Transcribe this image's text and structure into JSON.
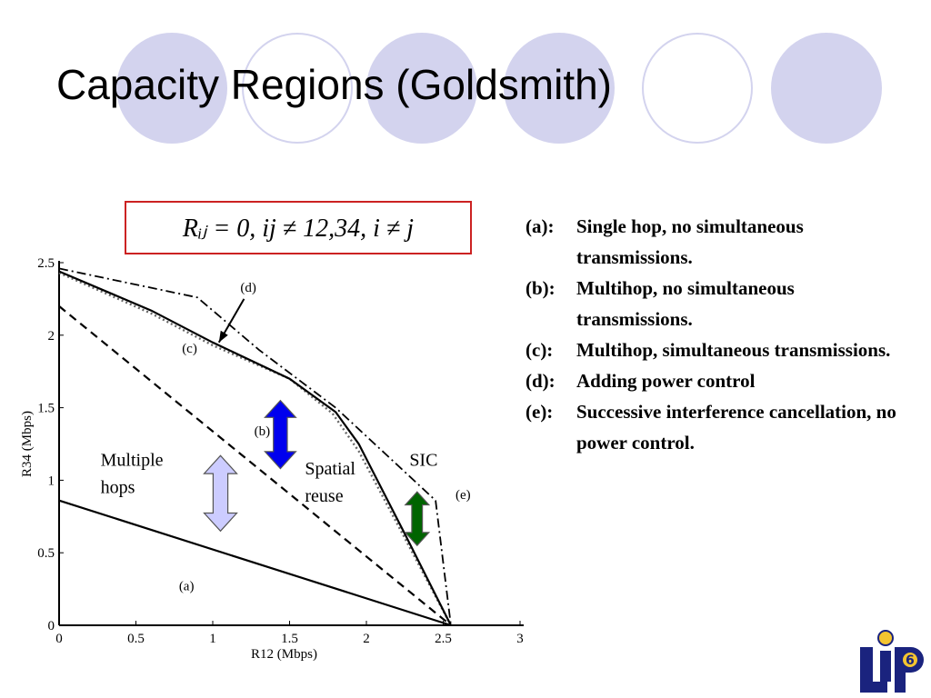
{
  "slide": {
    "title": "Capacity Regions (Goldsmith)"
  },
  "formula": {
    "text": "Rᵢⱼ = 0,   ij ≠ 12,34,   i ≠ j"
  },
  "legend": [
    {
      "label": "(a):",
      "text": "Single hop, no simultaneous transmissions."
    },
    {
      "label": "(b):",
      "text": "Multihop, no simultaneous transmissions."
    },
    {
      "label": "(c):",
      "text": "Multihop, simultaneous transmissions."
    },
    {
      "label": "(d):",
      "text": "Adding power control"
    },
    {
      "label": "(e):",
      "text": "Successive interference cancellation, no power control."
    }
  ],
  "colors": {
    "decor_circle": "#d3d3ee",
    "formula_border": "#cc2222",
    "arrow_multiple_hops": "#ccccff",
    "arrow_spatial_reuse": "#0000ee",
    "arrow_sic": "#006400",
    "logo_blue": "#1a237e",
    "logo_yellow": "#f4c430"
  },
  "chart_data": {
    "type": "line",
    "xlabel": "R12 (Mbps)",
    "ylabel": "R34 (Mbps)",
    "xlim": [
      0,
      3
    ],
    "ylim": [
      0,
      2.5
    ],
    "x_ticks": [
      "0",
      "0.5",
      "1",
      "1.5",
      "2",
      "2.5",
      "3"
    ],
    "y_ticks": [
      "0",
      "0.5",
      "1",
      "1.5",
      "2",
      "2.5"
    ],
    "grid": false,
    "series": [
      {
        "name": "(a)",
        "style": "solid",
        "points": [
          [
            0,
            0.86
          ],
          [
            2.55,
            0
          ]
        ]
      },
      {
        "name": "(b)",
        "style": "dashed",
        "points": [
          [
            0,
            2.2
          ],
          [
            2.55,
            0
          ]
        ]
      },
      {
        "name": "(c)",
        "style": "dotted",
        "points": [
          [
            0,
            2.43
          ],
          [
            0.6,
            2.15
          ],
          [
            1.0,
            1.93
          ],
          [
            1.5,
            1.7
          ],
          [
            1.78,
            1.46
          ],
          [
            1.95,
            1.2
          ],
          [
            2.25,
            0.6
          ],
          [
            2.55,
            0
          ]
        ]
      },
      {
        "name": "(d)",
        "style": "solid",
        "points": [
          [
            0,
            2.44
          ],
          [
            0.6,
            2.17
          ],
          [
            1.0,
            1.95
          ],
          [
            1.5,
            1.7
          ],
          [
            1.8,
            1.47
          ],
          [
            1.95,
            1.25
          ],
          [
            2.25,
            0.63
          ],
          [
            2.55,
            0
          ]
        ]
      },
      {
        "name": "(e)",
        "style": "dashdot",
        "points": [
          [
            0,
            2.46
          ],
          [
            0.9,
            2.26
          ],
          [
            1.3,
            1.9
          ],
          [
            1.8,
            1.5
          ],
          [
            2.45,
            0.86
          ],
          [
            2.55,
            0
          ]
        ]
      }
    ],
    "annotations": [
      {
        "id": "a",
        "text": "(a)",
        "x": 0.78,
        "y": 0.24
      },
      {
        "id": "b",
        "text": "(b)",
        "x": 1.27,
        "y": 1.31
      },
      {
        "id": "c",
        "text": "(c)",
        "x": 0.8,
        "y": 1.88
      },
      {
        "id": "d",
        "text": "(d)",
        "x": 1.18,
        "y": 2.3
      },
      {
        "id": "e",
        "text": "(e)",
        "x": 2.58,
        "y": 0.87
      },
      {
        "id": "multiple_hops",
        "text": "Multiple hops",
        "x": 0.27,
        "y": 1.1
      },
      {
        "id": "spatial_reuse",
        "text": "Spatial reuse",
        "x": 1.6,
        "y": 1.04
      },
      {
        "id": "sic",
        "text": "SIC",
        "x": 2.28,
        "y": 1.1
      }
    ],
    "arrows": [
      {
        "id": "multiple_hops",
        "x": 1.05,
        "y_from": 1.17,
        "y_to": 0.65
      },
      {
        "id": "spatial_reuse",
        "x": 1.44,
        "y_from": 1.55,
        "y_to": 1.08
      },
      {
        "id": "sic",
        "x": 2.33,
        "y_from": 0.92,
        "y_to": 0.55
      }
    ]
  }
}
